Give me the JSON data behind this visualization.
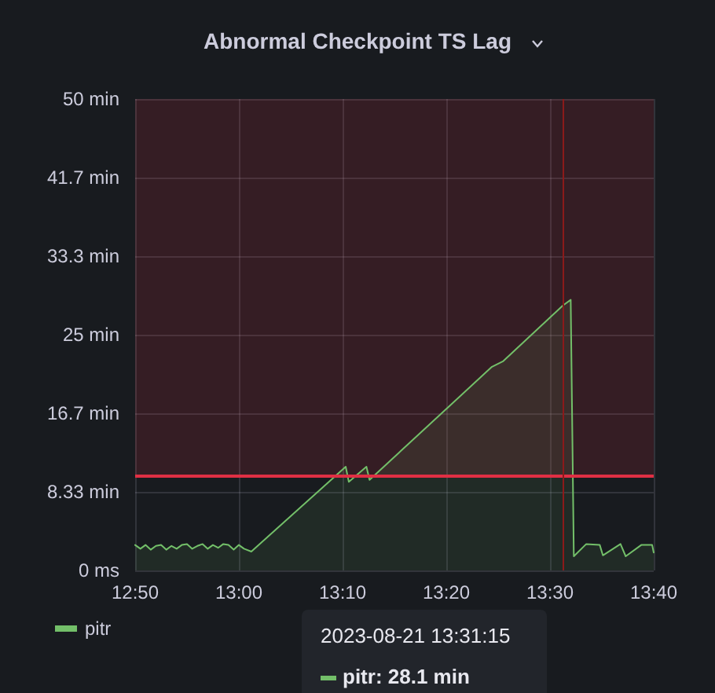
{
  "chart_data": {
    "type": "area",
    "title": "Abnormal Checkpoint TS Lag",
    "x": [
      12.8333,
      12.8417,
      12.85,
      12.8583,
      12.8667,
      12.875,
      12.8833,
      12.8917,
      12.9,
      12.9083,
      12.9167,
      12.925,
      12.9333,
      12.9417,
      12.95,
      12.9583,
      12.9667,
      12.975,
      12.9833,
      12.9917,
      13.0,
      13.0083,
      13.02,
      13.1717,
      13.1767,
      13.205,
      13.21,
      13.4067,
      13.425,
      13.5208,
      13.5333,
      13.5383,
      13.5583,
      13.58,
      13.585,
      13.6133,
      13.6217,
      13.6467,
      13.6642,
      13.6667
    ],
    "series": [
      {
        "name": "pitr",
        "color": "#73bf69",
        "values": [
          2.7,
          2.3,
          2.7,
          2.2,
          2.6,
          2.7,
          2.2,
          2.6,
          2.3,
          2.7,
          2.8,
          2.3,
          2.6,
          2.8,
          2.3,
          2.7,
          2.4,
          2.8,
          2.7,
          2.2,
          2.7,
          2.3,
          2.0,
          11.0,
          9.4,
          11.0,
          9.6,
          21.6,
          22.2,
          28.1,
          28.7,
          1.5,
          2.8,
          2.7,
          1.6,
          2.8,
          1.5,
          2.7,
          2.7,
          1.9
        ]
      }
    ],
    "xlim": [
      12.8333,
      13.6667
    ],
    "xticks": [
      {
        "value": 12.8333,
        "label": "12:50"
      },
      {
        "value": 13.0,
        "label": "13:00"
      },
      {
        "value": 13.1667,
        "label": "13:10"
      },
      {
        "value": 13.3333,
        "label": "13:20"
      },
      {
        "value": 13.5,
        "label": "13:30"
      },
      {
        "value": 13.6667,
        "label": "13:40"
      }
    ],
    "ylim": [
      0,
      50
    ],
    "yticks": [
      {
        "value": 0,
        "label": "0 ms"
      },
      {
        "value": 8.333,
        "label": "8.33 min"
      },
      {
        "value": 16.67,
        "label": "16.7 min"
      },
      {
        "value": 25,
        "label": "25 min"
      },
      {
        "value": 33.33,
        "label": "33.3 min"
      },
      {
        "value": 41.67,
        "label": "41.7 min"
      },
      {
        "value": 50,
        "label": "50 min"
      }
    ],
    "ref_lines": [
      {
        "axis": "y",
        "value": 10,
        "color": "#e02f44"
      },
      {
        "axis": "x",
        "value": 13.5208,
        "color": "#8b1a1a"
      }
    ],
    "bands": [
      {
        "axis": "y",
        "from": 10,
        "to": 50,
        "color": "#e02f44"
      }
    ],
    "annotations": [
      "2023-08-21 13:31:15",
      "pitr: 28.1 min"
    ],
    "grid": true,
    "legend": "bottom left",
    "marker": "none",
    "line_style": "solid"
  }
}
